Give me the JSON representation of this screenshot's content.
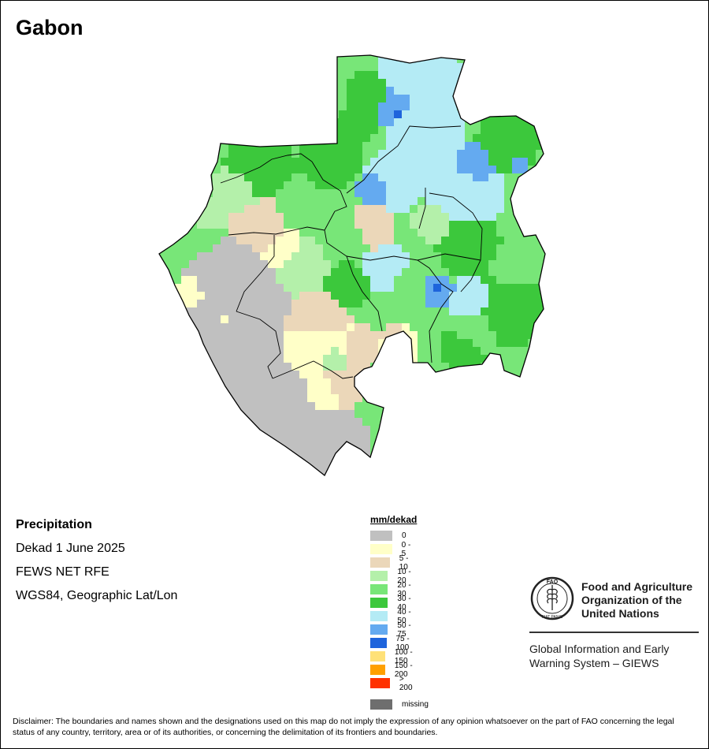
{
  "title": "Gabon",
  "info": {
    "variable": "Precipitation",
    "period": "Dekad 1 June 2025",
    "source": "FEWS NET RFE",
    "projection": "WGS84, Geographic Lat/Lon"
  },
  "legend": {
    "title": "mm/dekad",
    "classes": [
      {
        "label": "0",
        "color": "#c0c0c0"
      },
      {
        "label": "0 - 5",
        "color": "#ffffc8"
      },
      {
        "label": "5 - 10",
        "color": "#ebd7b9"
      },
      {
        "label": "10 - 20",
        "color": "#b4f0aa"
      },
      {
        "label": "20 - 30",
        "color": "#78e678"
      },
      {
        "label": "30 - 40",
        "color": "#3cc83c"
      },
      {
        "label": "40 - 50",
        "color": "#b4ebf5"
      },
      {
        "label": "50 - 75",
        "color": "#64aaf0"
      },
      {
        "label": "75 - 100",
        "color": "#1e64dc"
      },
      {
        "label": "100 - 150",
        "color": "#ffe178"
      },
      {
        "label": "150 - 200",
        "color": "#ffa000"
      },
      {
        "label": "> 200",
        "color": "#ff3200"
      }
    ],
    "missing": {
      "label": "missing",
      "color": "#6e6e6e"
    }
  },
  "org": {
    "name": "Food and Agriculture Organization of the United Nations",
    "logo_text": "FAO",
    "logo_motto": "FIAT PANIS",
    "system": "Global Information and Early Warning System – GIEWS"
  },
  "disclaimer": "Disclaimer: The boundaries and names shown and the designations used on this map do not imply the expression of any opinion whatsoever on the part of FAO concerning the legal status of any country, territory, area or of its authorities, or concerning the delimitation of its frontiers and boundaries."
}
